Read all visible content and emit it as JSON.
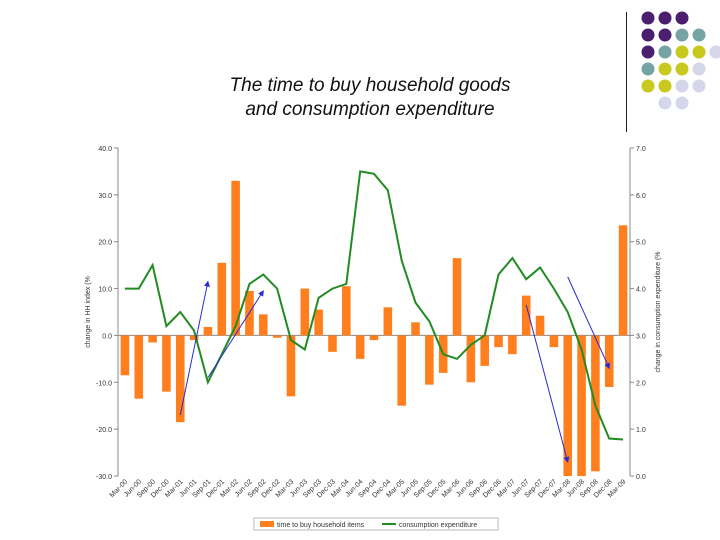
{
  "title_lines": [
    "The time to buy household goods",
    "and consumption expenditure"
  ],
  "colors": {
    "bars": "#ff7f1f",
    "line": "#228b22",
    "arrows": "#2a2ad0",
    "dot_purple": "#4b1e6e",
    "dot_teal": "#76a3a3",
    "dot_olive": "#c8c81e",
    "dot_lavender": "#d6d6ea"
  },
  "decoration_dot_colors": [
    [
      "dot_purple",
      "dot_purple",
      "dot_purple",
      null,
      null
    ],
    [
      "dot_purple",
      "dot_purple",
      "dot_teal",
      "dot_teal",
      null
    ],
    [
      "dot_purple",
      "dot_teal",
      "dot_olive",
      "dot_olive",
      "dot_lavender"
    ],
    [
      "dot_teal",
      "dot_olive",
      "dot_olive",
      "dot_lavender",
      null
    ],
    [
      "dot_olive",
      "dot_olive",
      "dot_lavender",
      "dot_lavender",
      null
    ],
    [
      null,
      "dot_lavender",
      "dot_lavender",
      null,
      null
    ]
  ],
  "chart_data": {
    "type": "bar",
    "categories": [
      "Mar-00",
      "Jun-00",
      "Sep-00",
      "Dec-00",
      "Mar-01",
      "Jun-01",
      "Sep-01",
      "Dec-01",
      "Mar-02",
      "Jun-02",
      "Sep-02",
      "Dec-02",
      "Mar-03",
      "Jun-03",
      "Sep-03",
      "Dec-03",
      "Mar-04",
      "Jun-04",
      "Sep-04",
      "Dec-04",
      "Mar-05",
      "Jun-05",
      "Sep-05",
      "Dec-05",
      "Mar-06",
      "Jun-06",
      "Sep-06",
      "Dec-06",
      "Mar-07",
      "Jun-07",
      "Sep-07",
      "Dec-07",
      "Mar-08",
      "Jun-08",
      "Sep-08",
      "Dec-08",
      "Mar-09"
    ],
    "series": [
      {
        "name": "time to buy household items",
        "type": "bar",
        "axis": "left",
        "values": [
          -8.5,
          -13.5,
          -1.5,
          -12,
          -18.5,
          -1,
          1.8,
          15.5,
          33,
          9.5,
          4.5,
          -0.5,
          -13,
          10,
          5.5,
          -3.5,
          10.5,
          -5,
          -1,
          6,
          -15,
          2.8,
          -10.5,
          -8,
          16.5,
          -10,
          -6.5,
          -2.5,
          -4,
          8.5,
          4.2,
          -2.5,
          -30,
          -30,
          -29,
          -11,
          23.5
        ]
      },
      {
        "name": "consumption expenditure",
        "type": "line",
        "axis": "right",
        "values": [
          4.0,
          4.0,
          4.5,
          3.2,
          3.5,
          3.1,
          2.0,
          2.6,
          3.2,
          4.1,
          4.3,
          4.0,
          2.9,
          2.7,
          3.8,
          4.0,
          4.1,
          6.5,
          6.45,
          6.1,
          4.6,
          3.7,
          3.3,
          2.6,
          2.5,
          2.8,
          3.0,
          4.3,
          4.65,
          4.2,
          4.45,
          4.0,
          3.5,
          2.7,
          1.5,
          0.8,
          0.78
        ]
      }
    ],
    "left_axis": {
      "label": "change in HH index (%",
      "ylim": [
        -30,
        40
      ],
      "ticks": [
        "-30.0",
        "-20.0",
        "-10.0",
        "0.0",
        "10.0",
        "20.0",
        "30.0",
        "40.0"
      ]
    },
    "right_axis": {
      "label": "change in consumption expenditure (%",
      "ylim": [
        0,
        7
      ],
      "ticks": [
        "0.0",
        "1.0",
        "2.0",
        "3.0",
        "4.0",
        "5.0",
        "6.0",
        "7.0"
      ]
    },
    "arrows": [
      {
        "from": [
          "Mar-01",
          -17
        ],
        "to": [
          "Sep-01",
          11.5
        ]
      },
      {
        "from": [
          "Sep-01",
          -9
        ],
        "to": [
          "Sep-02",
          9.5
        ]
      },
      {
        "from": [
          "Jun-07",
          6.5
        ],
        "to": [
          "Mar-08",
          -27
        ]
      },
      {
        "from": [
          "Mar-08",
          12.5
        ],
        "to": [
          "Dec-08",
          -7
        ]
      }
    ],
    "legend_position": "bottom",
    "grid": false
  }
}
